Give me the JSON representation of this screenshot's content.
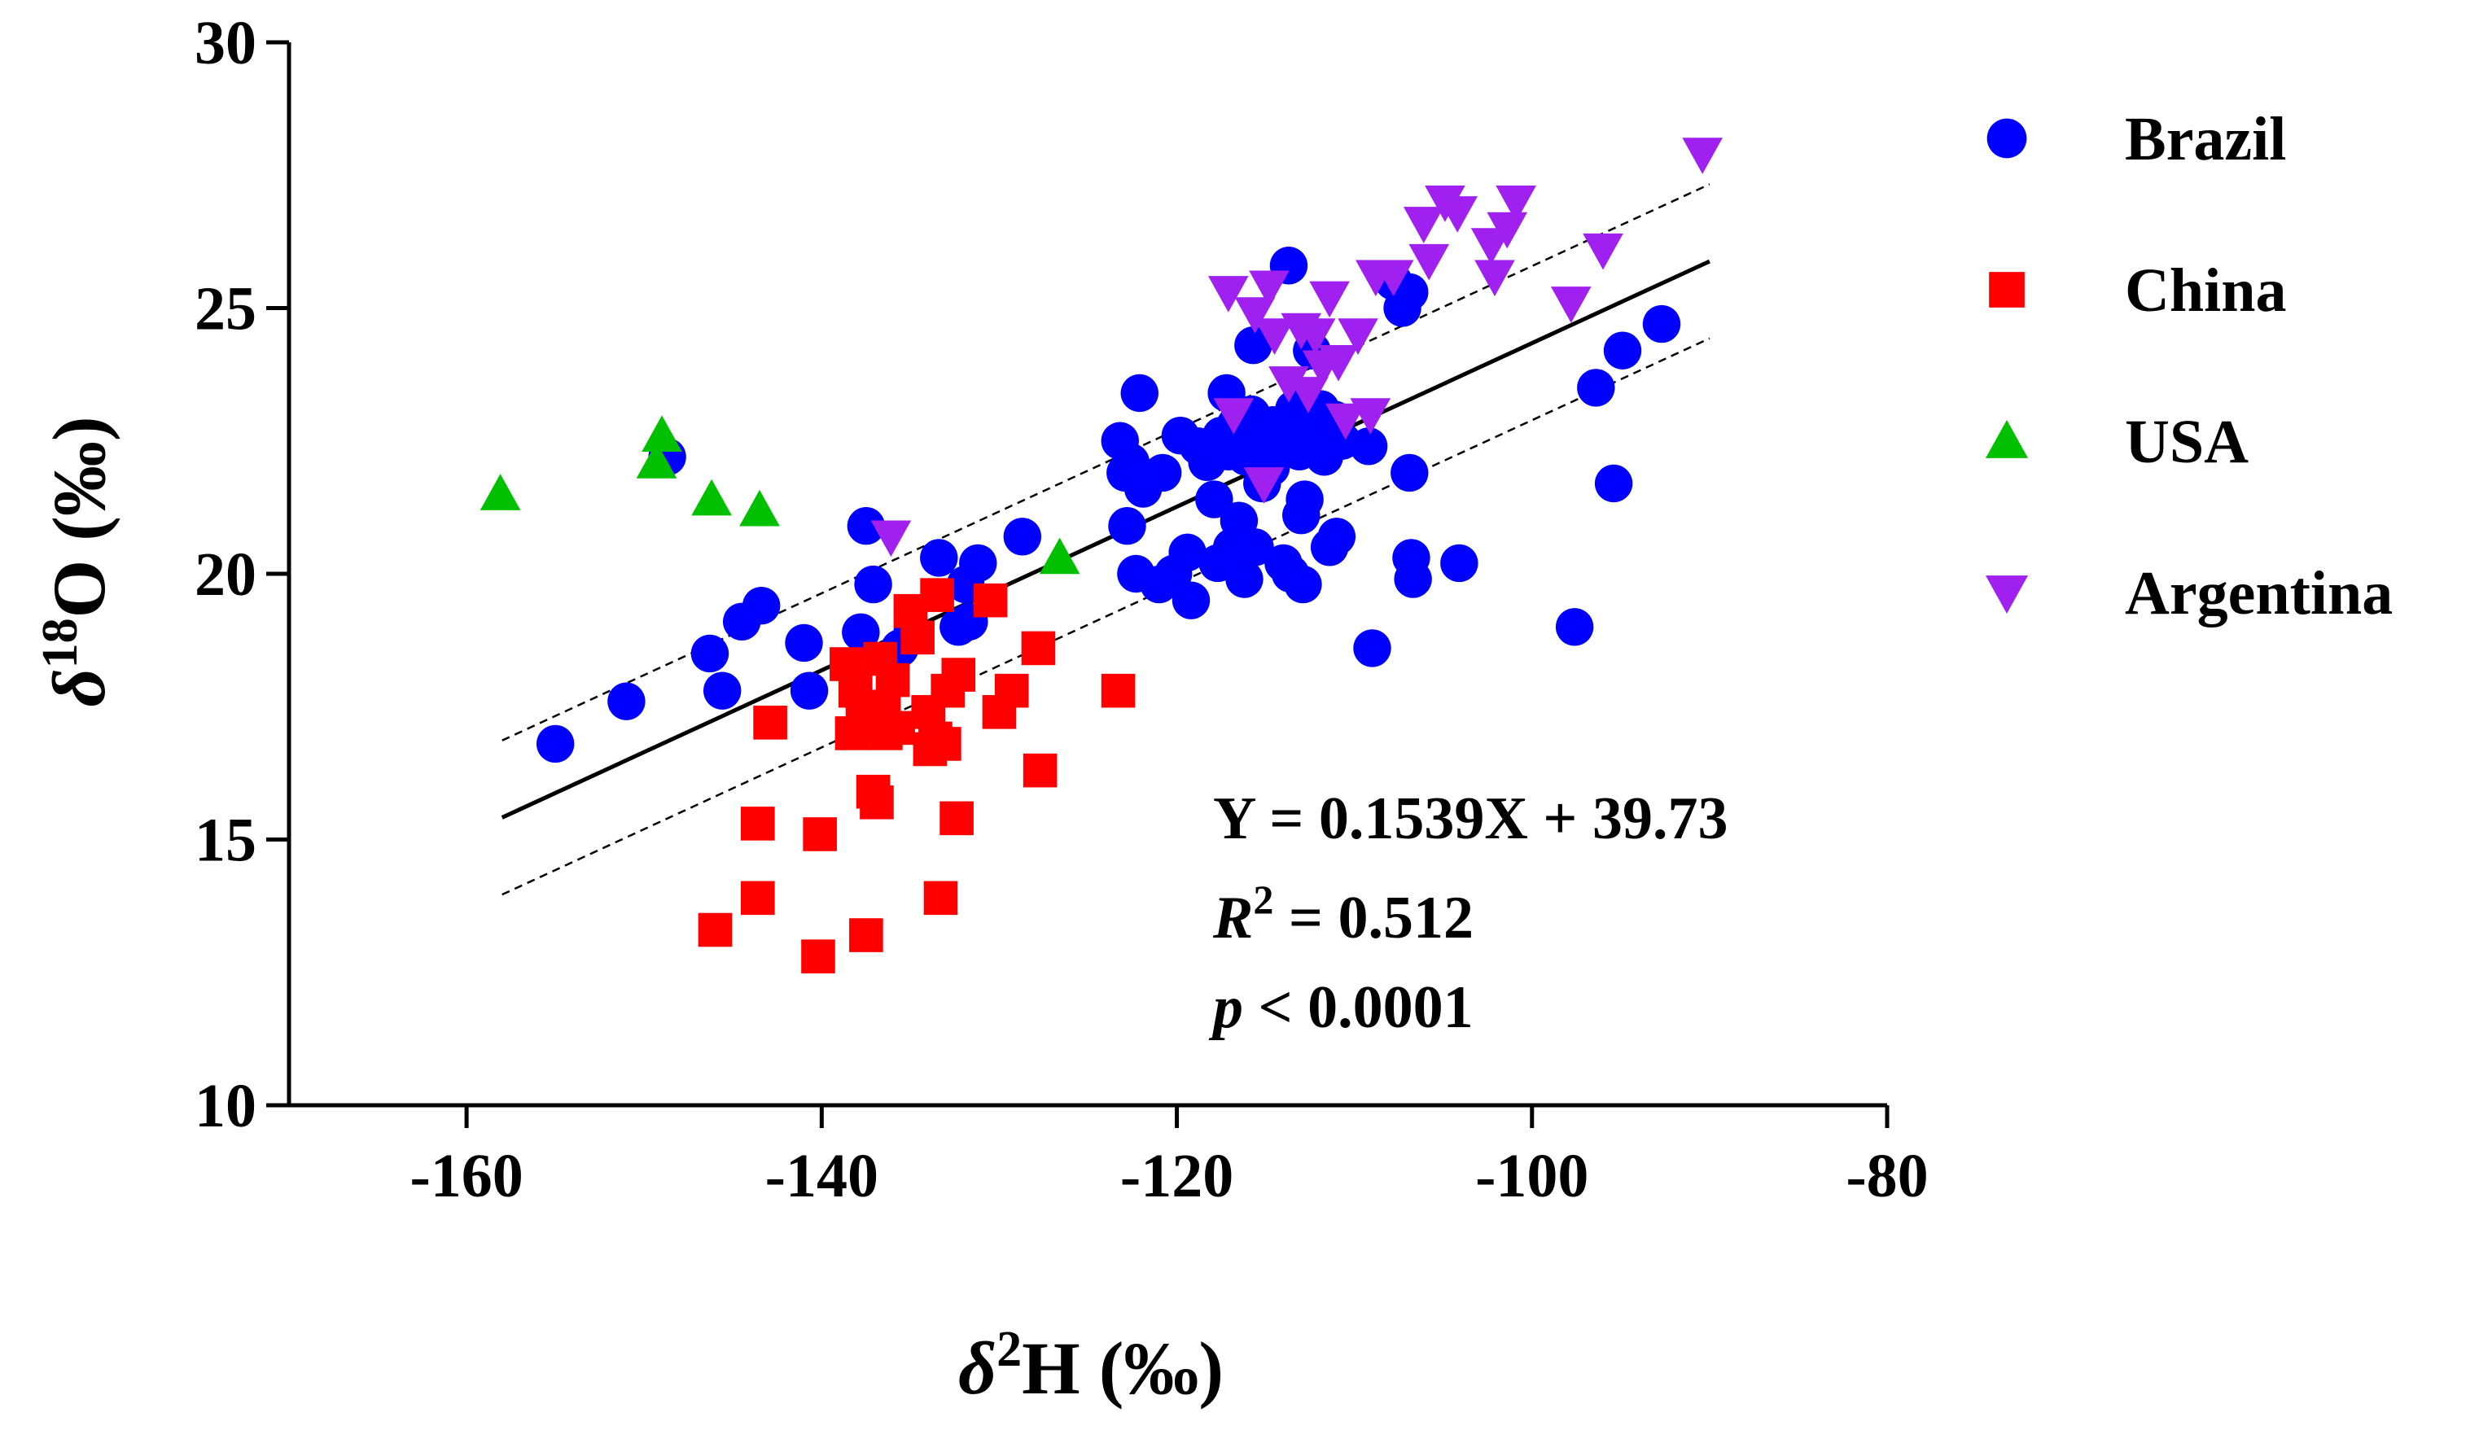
{
  "chart_data": {
    "type": "scatter",
    "title": "",
    "xlabel": {
      "symbol": "δ",
      "sup": "2",
      "rest": "H (‰)"
    },
    "ylabel": {
      "symbol": "δ",
      "sup": "18",
      "rest": "O  (‰)"
    },
    "xlim": [
      -170,
      -80
    ],
    "ylim": [
      10,
      30
    ],
    "xticks": [
      "-160",
      "-140",
      "-120",
      "-100",
      "-80"
    ],
    "yticks": [
      "10",
      "15",
      "20",
      "25",
      "30"
    ],
    "grid": false,
    "legend_position": "right",
    "series": [
      {
        "name": "Brazil",
        "color": "#0000ff",
        "marker": "circle",
        "points": [
          [
            -155,
            16.8
          ],
          [
            -151,
            17.6
          ],
          [
            -148.7,
            22.2
          ],
          [
            -146.3,
            18.5
          ],
          [
            -145.6,
            17.8
          ],
          [
            -144.5,
            19.1
          ],
          [
            -143.4,
            19.4
          ],
          [
            -141,
            18.7
          ],
          [
            -140.7,
            17.8
          ],
          [
            -137.8,
            18.9
          ],
          [
            -137.5,
            20.9
          ],
          [
            -137.1,
            19.8
          ],
          [
            -135.6,
            18.6
          ],
          [
            -134.9,
            18.9
          ],
          [
            -133.4,
            20.3
          ],
          [
            -132.3,
            19.0
          ],
          [
            -131.9,
            19.8
          ],
          [
            -131.7,
            19.1
          ],
          [
            -131.2,
            20.2
          ],
          [
            -128.7,
            20.7
          ],
          [
            -123.2,
            22.5
          ],
          [
            -122.9,
            21.9
          ],
          [
            -122.8,
            20.9
          ],
          [
            -122.6,
            22.1
          ],
          [
            -122.3,
            20.0
          ],
          [
            -122.1,
            23.4
          ],
          [
            -121.9,
            21.6
          ],
          [
            -121,
            19.8
          ],
          [
            -120.8,
            21.9
          ],
          [
            -120.2,
            20.0
          ],
          [
            -119.8,
            22.6
          ],
          [
            -119.4,
            20.4
          ],
          [
            -119.2,
            19.5
          ],
          [
            -118.8,
            22.4
          ],
          [
            -118.3,
            22.1
          ],
          [
            -117.9,
            21.4
          ],
          [
            -117.7,
            20.2
          ],
          [
            -117.5,
            22.6
          ],
          [
            -117.2,
            23.4
          ],
          [
            -117.1,
            22.3
          ],
          [
            -116.9,
            20.5
          ],
          [
            -116.7,
            22.8
          ],
          [
            -116.5,
            21.0
          ],
          [
            -116.2,
            19.9
          ],
          [
            -116.1,
            22.2
          ],
          [
            -115.8,
            23.0
          ],
          [
            -115.7,
            24.3
          ],
          [
            -115.6,
            20.5
          ],
          [
            -115.4,
            22.5
          ],
          [
            -115.2,
            21.7
          ],
          [
            -115.1,
            22.1
          ],
          [
            -114.7,
            22.0
          ],
          [
            -114.6,
            22.8
          ],
          [
            -114.3,
            22.4
          ],
          [
            -114.0,
            20.2
          ],
          [
            -113.7,
            25.8
          ],
          [
            -113.6,
            20.0
          ],
          [
            -113.4,
            23.1
          ],
          [
            -113.3,
            22.6
          ],
          [
            -113.1,
            22.3
          ],
          [
            -113.0,
            21.1
          ],
          [
            -112.9,
            19.8
          ],
          [
            -112.8,
            21.4
          ],
          [
            -112.6,
            22.6
          ],
          [
            -112.4,
            24.2
          ],
          [
            -112.2,
            22.5
          ],
          [
            -111.9,
            23.1
          ],
          [
            -111.7,
            22.2
          ],
          [
            -111.4,
            20.5
          ],
          [
            -111.1,
            22.9
          ],
          [
            -111.0,
            20.7
          ],
          [
            -110.7,
            22.5
          ],
          [
            -109.2,
            22.4
          ],
          [
            -109.0,
            18.6
          ],
          [
            -107.8,
            25.5
          ],
          [
            -107.3,
            25.0
          ],
          [
            -106.9,
            25.3
          ],
          [
            -106.9,
            21.9
          ],
          [
            -106.8,
            20.3
          ],
          [
            -106.7,
            19.9
          ],
          [
            -104.1,
            20.2
          ],
          [
            -97.6,
            19.0
          ],
          [
            -96.4,
            23.5
          ],
          [
            -95.4,
            21.7
          ],
          [
            -94.9,
            24.2
          ],
          [
            -92.7,
            24.7
          ]
        ]
      },
      {
        "name": "China",
        "color": "#ff0000",
        "marker": "square",
        "points": [
          [
            -146,
            13.3
          ],
          [
            -143.6,
            13.9
          ],
          [
            -143.6,
            15.3
          ],
          [
            -142.9,
            17.2
          ],
          [
            -140.2,
            12.8
          ],
          [
            -140.1,
            15.1
          ],
          [
            -138.6,
            18.3
          ],
          [
            -138.3,
            17.0
          ],
          [
            -138.1,
            17.8
          ],
          [
            -137.7,
            17.2
          ],
          [
            -137.5,
            13.2
          ],
          [
            -137.4,
            17.5
          ],
          [
            -137.1,
            15.9
          ],
          [
            -136.9,
            15.7
          ],
          [
            -136.7,
            18.4
          ],
          [
            -136.5,
            17.4
          ],
          [
            -136.4,
            17.0
          ],
          [
            -136.0,
            18.0
          ],
          [
            -135.7,
            17.1
          ],
          [
            -135.0,
            19.3
          ],
          [
            -134.6,
            18.8
          ],
          [
            -134.0,
            17.4
          ],
          [
            -133.9,
            16.7
          ],
          [
            -133.6,
            16.9
          ],
          [
            -133.5,
            19.6
          ],
          [
            -133.3,
            13.9
          ],
          [
            -133.1,
            16.8
          ],
          [
            -132.9,
            17.8
          ],
          [
            -132.4,
            15.4
          ],
          [
            -132.3,
            18.1
          ],
          [
            -130.5,
            19.5
          ],
          [
            -130.0,
            17.4
          ],
          [
            -129.3,
            17.8
          ],
          [
            -127.8,
            18.6
          ],
          [
            -127.7,
            16.3
          ],
          [
            -123.3,
            17.8
          ]
        ]
      },
      {
        "name": "USA",
        "color": "#00c000",
        "marker": "triangle-up",
        "points": [
          [
            -158.1,
            21.5
          ],
          [
            -149.3,
            22.1
          ],
          [
            -149.0,
            22.6
          ],
          [
            -146.2,
            21.4
          ],
          [
            -143.5,
            21.2
          ],
          [
            -126.6,
            20.3
          ]
        ]
      },
      {
        "name": "Argentina",
        "color": "#a020f0",
        "marker": "triangle-down",
        "points": [
          [
            -136.1,
            20.7
          ],
          [
            -117.1,
            25.3
          ],
          [
            -116.8,
            23.0
          ],
          [
            -115.6,
            24.9
          ],
          [
            -115.1,
            21.7
          ],
          [
            -114.8,
            25.4
          ],
          [
            -114.5,
            24.5
          ],
          [
            -113.7,
            23.6
          ],
          [
            -113.0,
            24.6
          ],
          [
            -112.6,
            23.4
          ],
          [
            -112.2,
            24.5
          ],
          [
            -111.8,
            23.9
          ],
          [
            -111.4,
            25.2
          ],
          [
            -110.9,
            24.0
          ],
          [
            -110.5,
            22.9
          ],
          [
            -109.8,
            24.5
          ],
          [
            -109.1,
            23.0
          ],
          [
            -108.8,
            25.6
          ],
          [
            -107.8,
            25.6
          ],
          [
            -106.1,
            26.6
          ],
          [
            -105.8,
            25.9
          ],
          [
            -104.9,
            27.0
          ],
          [
            -104.2,
            26.8
          ],
          [
            -102.3,
            26.2
          ],
          [
            -102.1,
            25.6
          ],
          [
            -101.4,
            26.5
          ],
          [
            -100.9,
            27.0
          ],
          [
            -97.8,
            25.1
          ],
          [
            -96.0,
            26.1
          ],
          [
            -90.4,
            27.9
          ]
        ]
      }
    ],
    "regression": {
      "slope": 0.1539,
      "intercept": 39.73,
      "x_range": [
        -158,
        -90
      ],
      "band_offset": 1.45
    },
    "annotations": {
      "equation": "Y = 0.1539X + 39.73",
      "r2_label": "R",
      "r2_sup": "2",
      "r2_value": " = 0.512",
      "p_label": "p",
      "p_value": " < 0.0001"
    }
  }
}
